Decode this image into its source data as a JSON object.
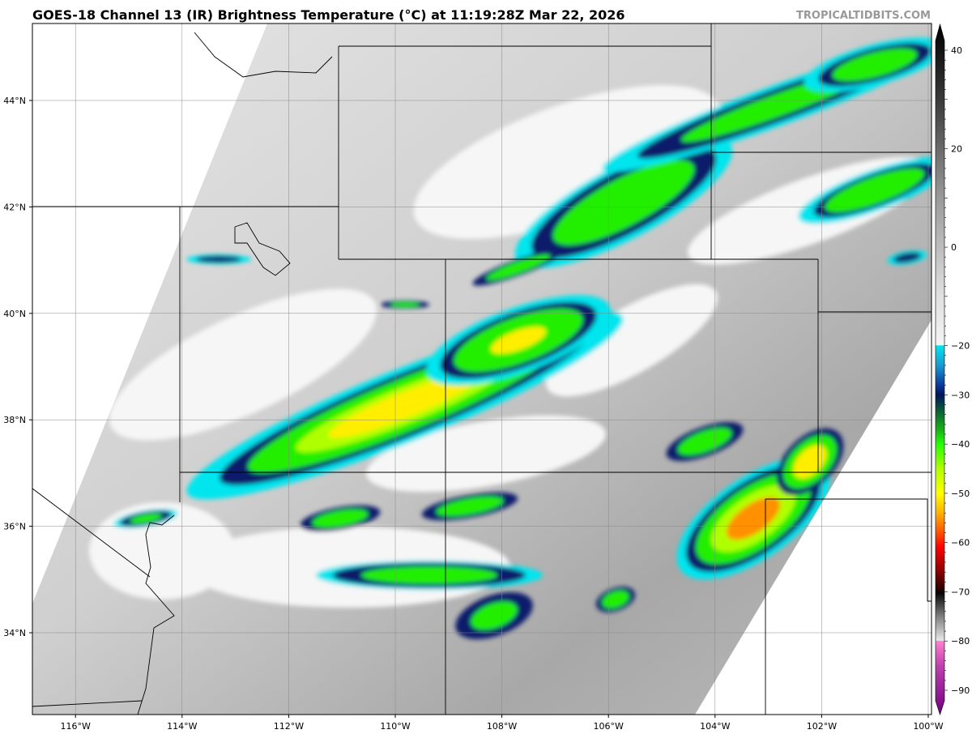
{
  "title": "GOES-18 Channel 13 (IR) Brightness Temperature (°C) at 11:19:28Z Mar 22, 2026",
  "brand": "TROPICALTIDBITS.COM",
  "map": {
    "lon_ticks": [
      "116°W",
      "114°W",
      "112°W",
      "110°W",
      "108°W",
      "106°W",
      "104°W",
      "102°W",
      "100°W"
    ],
    "lon_values": [
      -116,
      -114,
      -112,
      -110,
      -108,
      -106,
      -104,
      -102,
      -100
    ],
    "lat_ticks": [
      "44°N",
      "42°N",
      "40°N",
      "38°N",
      "36°N",
      "34°N"
    ],
    "lat_values": [
      44,
      42,
      40,
      38,
      36,
      34
    ],
    "extent": {
      "lon": [
        -116.8,
        -99.95
      ],
      "lat": [
        32.45,
        45.45
      ]
    }
  },
  "colorbar": {
    "range": [
      -95,
      45
    ],
    "tick_labels": [
      "40",
      "20",
      "0",
      "−20",
      "−30",
      "−40",
      "−50",
      "−60",
      "−70",
      "−80",
      "−90"
    ],
    "tick_values": [
      40,
      20,
      0,
      -20,
      -30,
      -40,
      -50,
      -60,
      -70,
      -80,
      -90
    ],
    "stops": [
      [
        45,
        "#000000"
      ],
      [
        30,
        "#3a3a3a"
      ],
      [
        10,
        "#9a9a9a"
      ],
      [
        -10,
        "#e0e0e0"
      ],
      [
        -19.9,
        "#f4f4f4"
      ],
      [
        -20,
        "#00e5ee"
      ],
      [
        -24,
        "#1a9ad0"
      ],
      [
        -28,
        "#0a3a9a"
      ],
      [
        -30,
        "#00145a"
      ],
      [
        -33,
        "#0a5a3a"
      ],
      [
        -37,
        "#18b018"
      ],
      [
        -40,
        "#22ff00"
      ],
      [
        -45,
        "#b0ff00"
      ],
      [
        -50,
        "#ffff00"
      ],
      [
        -54,
        "#ffb000"
      ],
      [
        -58,
        "#ff5000"
      ],
      [
        -61,
        "#ff0000"
      ],
      [
        -65,
        "#a00000"
      ],
      [
        -69.9,
        "#200000"
      ],
      [
        -70,
        "#000000"
      ],
      [
        -75,
        "#808080"
      ],
      [
        -79.9,
        "#e8e8e8"
      ],
      [
        -80,
        "#ff80d0"
      ],
      [
        -85,
        "#c040b0"
      ],
      [
        -95,
        "#700080"
      ]
    ]
  }
}
